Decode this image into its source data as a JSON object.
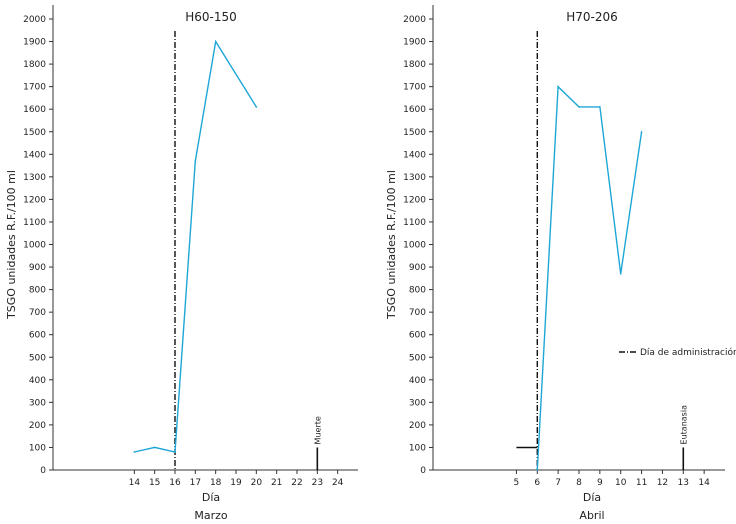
{
  "chart_data": [
    {
      "type": "line",
      "title": "H60-150",
      "xlabel": "Día",
      "month_label": "Marzo",
      "ylabel": "TSGO unidades R.F./100 ml",
      "ylim": [
        0,
        2000
      ],
      "yticks": [
        0,
        100,
        200,
        300,
        400,
        500,
        600,
        700,
        800,
        900,
        1000,
        1100,
        1200,
        1300,
        1400,
        1500,
        1600,
        1700,
        1800,
        1900,
        2000
      ],
      "xlim": [
        10,
        25
      ],
      "xticks": [
        14,
        15,
        16,
        17,
        18,
        19,
        20,
        21,
        22,
        23,
        24
      ],
      "x_tick_labels": [
        "14",
        "15",
        "16",
        "17",
        "18",
        "19",
        "20",
        "21",
        "22",
        "23",
        "24"
      ],
      "series": [
        {
          "name": "",
          "color": "#1ea7d6",
          "x": [
            14,
            15,
            16,
            17,
            18,
            20
          ],
          "y": [
            80,
            100,
            80,
            1370,
            1900,
            1610
          ]
        }
      ],
      "administration_day": 16,
      "event": {
        "x": 23,
        "y": 100,
        "label": "Muerte"
      }
    },
    {
      "type": "line",
      "title": "H70-206",
      "xlabel": "Día",
      "month_label": "Abril",
      "ylabel": "TSGO unidades R.F./100 ml",
      "ylim": [
        0,
        2000
      ],
      "yticks": [
        0,
        100,
        200,
        300,
        400,
        500,
        600,
        700,
        800,
        900,
        1000,
        1100,
        1200,
        1300,
        1400,
        1500,
        1600,
        1700,
        1800,
        1900,
        2000
      ],
      "xlim": [
        1,
        15
      ],
      "xticks": [
        5,
        6,
        7,
        8,
        9,
        10,
        11,
        12,
        13,
        14
      ],
      "x_tick_labels": [
        "5",
        "6",
        "7",
        "8",
        "9",
        "10",
        "11",
        "12",
        "13",
        "14"
      ],
      "series": [
        {
          "name": "",
          "color": "#1ea7d6",
          "x": [
            6,
            7,
            8,
            9,
            10,
            11
          ],
          "y": [
            0,
            1700,
            1610,
            1610,
            870,
            1500
          ]
        }
      ],
      "baseline": {
        "x": [
          5,
          6
        ],
        "y": [
          100,
          100
        ]
      },
      "administration_day": 6,
      "event": {
        "x": 13,
        "y": 100,
        "label": "Eutanasia"
      },
      "legend": {
        "label": "Día de administración",
        "placement": "right"
      }
    }
  ]
}
